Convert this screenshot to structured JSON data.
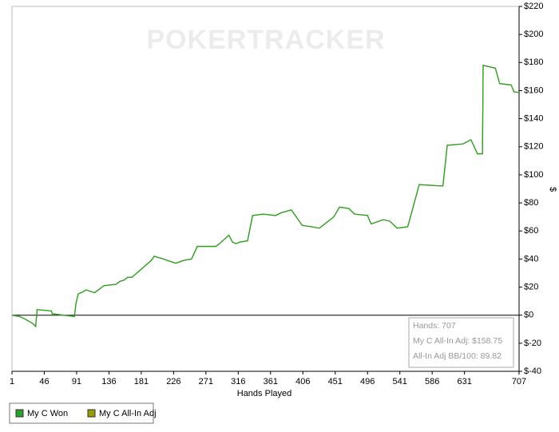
{
  "chart_data": {
    "type": "line",
    "watermark": "POKERTRACKER",
    "x_label": "Hands Played",
    "y_label": "$",
    "x": [
      1,
      12,
      20,
      30,
      34,
      36,
      56,
      57,
      88,
      90,
      93,
      101,
      104,
      116,
      129,
      146,
      151,
      157,
      162,
      168,
      195,
      199,
      212,
      223,
      229,
      240,
      251,
      259,
      285,
      290,
      303,
      308,
      313,
      318,
      329,
      336,
      351,
      368,
      376,
      390,
      405,
      418,
      429,
      449,
      457,
      470,
      478,
      496,
      501,
      518,
      527,
      537,
      552,
      568,
      601,
      607,
      629,
      640,
      649,
      656,
      657,
      674,
      680,
      696,
      700,
      707
    ],
    "series": [
      {
        "name": "My C Won",
        "color": "#2ca02c",
        "values": [
          0,
          -1,
          -3,
          -6,
          -8,
          4,
          3,
          1,
          -1,
          8,
          15,
          17,
          18,
          16,
          21,
          22,
          24,
          25,
          27,
          27,
          39,
          42,
          40,
          38,
          37,
          39,
          40,
          49,
          49,
          51,
          57,
          52,
          51,
          52,
          53,
          71,
          72,
          71,
          73,
          75,
          64,
          63,
          62,
          70,
          77,
          76,
          72,
          71,
          65,
          68,
          67,
          62,
          63,
          93,
          92,
          121,
          122,
          125,
          115,
          115,
          178,
          176,
          165,
          164,
          159,
          158.75
        ]
      },
      {
        "name": "My C All-In Adj",
        "color": "#999900",
        "values": [
          0,
          -1,
          -3,
          -6,
          -8,
          4,
          3,
          1,
          -1,
          8,
          15,
          17,
          18,
          16,
          21,
          22,
          24,
          25,
          27,
          27,
          39,
          42,
          40,
          38,
          37,
          39,
          40,
          49,
          49,
          51,
          57,
          52,
          51,
          52,
          53,
          71,
          72,
          71,
          73,
          75,
          64,
          63,
          62,
          70,
          77,
          76,
          72,
          71,
          65,
          68,
          67,
          62,
          63,
          93,
          92,
          121,
          122,
          125,
          115,
          115,
          178,
          176,
          165,
          164,
          159,
          158.75
        ]
      }
    ],
    "xlim": [
      1,
      707
    ],
    "xticks": [
      1,
      46,
      91,
      136,
      181,
      226,
      271,
      316,
      361,
      406,
      451,
      496,
      541,
      586,
      631,
      707
    ],
    "ylim": [
      -40,
      220
    ],
    "yticks": [
      {
        "value": -40,
        "label": "$-40"
      },
      {
        "value": -20,
        "label": "$-20"
      },
      {
        "value": 0,
        "label": "$0"
      },
      {
        "value": 20,
        "label": "$20"
      },
      {
        "value": 40,
        "label": "$40"
      },
      {
        "value": 60,
        "label": "$60"
      },
      {
        "value": 80,
        "label": "$80"
      },
      {
        "value": 100,
        "label": "$100"
      },
      {
        "value": 120,
        "label": "$120"
      },
      {
        "value": 140,
        "label": "$140"
      },
      {
        "value": 160,
        "label": "$160"
      },
      {
        "value": 180,
        "label": "$180"
      },
      {
        "value": 200,
        "label": "$200"
      },
      {
        "value": 220,
        "label": "$220"
      }
    ],
    "annotation": [
      "Hands: 707",
      "My C All-In Adj: $158.75",
      "All-In Adj BB/100: 89.82"
    ],
    "zero_line": true,
    "grid": false
  }
}
